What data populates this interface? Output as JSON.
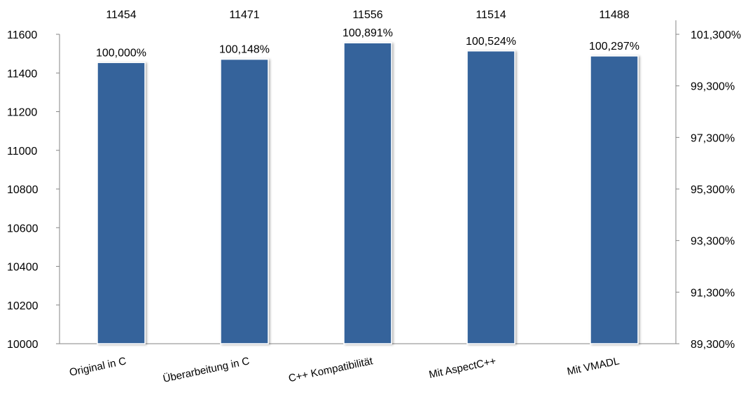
{
  "chart_data": {
    "type": "bar",
    "categories": [
      "Original in C",
      "Überarbeitung in C",
      "C++ Kompatibilität",
      "Mit AspectC++",
      "Mit VMADL"
    ],
    "series": [
      {
        "values": [
          11454,
          11471,
          11556,
          11514,
          11488
        ],
        "labels": [
          "11454",
          "11471",
          "11556",
          "11514",
          "11488"
        ],
        "percent_labels": [
          "100,000%",
          "100,148%",
          "100,891%",
          "100,524%",
          "100,297%"
        ]
      }
    ],
    "ylim": [
      10000,
      11600
    ],
    "yticks": [
      "10000",
      "10200",
      "10400",
      "10600",
      "10800",
      "11000",
      "11200",
      "11400",
      "11600"
    ],
    "y2ticks": [
      "89,300%",
      "91,300%",
      "93,300%",
      "95,300%",
      "97,300%",
      "99,300%",
      "101,300%"
    ],
    "grid": false,
    "bar_color": "#34639b",
    "axis_color": "#868686"
  }
}
